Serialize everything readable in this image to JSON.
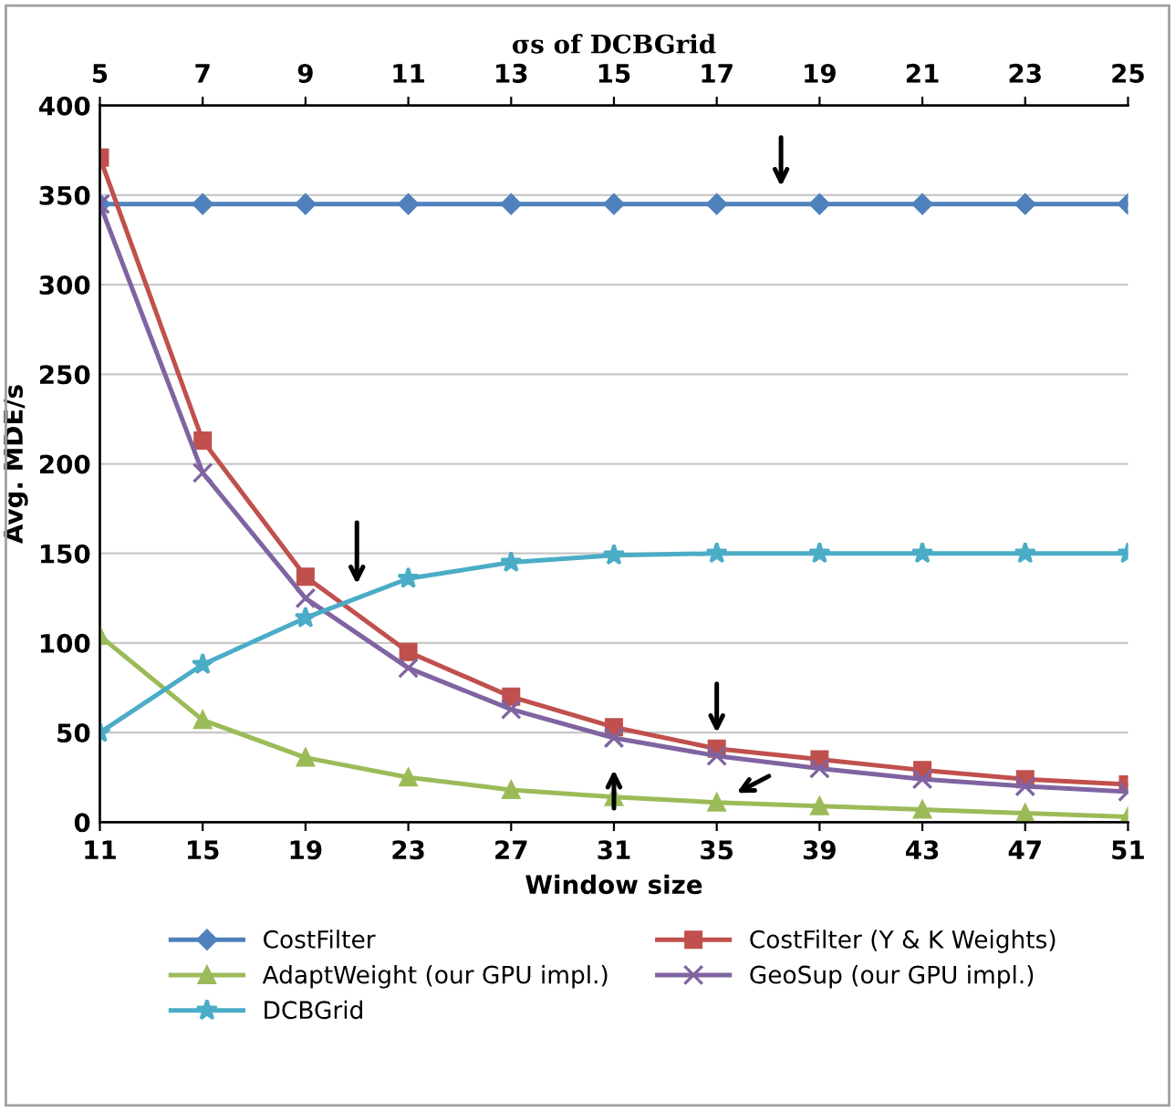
{
  "chart_data": {
    "type": "line",
    "x2label": "σs of DCBGrid",
    "xlabel": "Window size",
    "ylabel": "Avg. MDE/s",
    "x": [
      11,
      15,
      19,
      23,
      27,
      31,
      35,
      39,
      43,
      47,
      51
    ],
    "xlim": [
      11,
      51
    ],
    "xticks": [
      11,
      15,
      19,
      23,
      27,
      31,
      35,
      39,
      43,
      47,
      51
    ],
    "x2lim": [
      5,
      25
    ],
    "x2ticks": [
      5,
      7,
      9,
      11,
      13,
      15,
      17,
      19,
      21,
      23,
      25
    ],
    "ylim": [
      0,
      400
    ],
    "yticks": [
      0,
      50,
      100,
      150,
      200,
      250,
      300,
      350,
      400
    ],
    "grid": "y",
    "legend": "bottom",
    "series": [
      {
        "name": "CostFilter",
        "color": "#4f81bd",
        "marker": "diamond",
        "values": [
          345,
          345,
          345,
          345,
          345,
          345,
          345,
          345,
          345,
          345,
          345
        ]
      },
      {
        "name": "CostFilter (Y & K Weights)",
        "color": "#c0504d",
        "marker": "square",
        "values": [
          371,
          213,
          137,
          95,
          70,
          53,
          41,
          35,
          29,
          24,
          21
        ]
      },
      {
        "name": "AdaptWeight (our GPU impl.)",
        "color": "#9bbb59",
        "marker": "triangle",
        "values": [
          104,
          57,
          36,
          25,
          18,
          14,
          11,
          9,
          7,
          5,
          3
        ]
      },
      {
        "name": "GeoSup (our GPU impl.)",
        "color": "#8064a2",
        "marker": "cross",
        "values": [
          345,
          195,
          125,
          86,
          63,
          47,
          37,
          30,
          24,
          20,
          17
        ]
      },
      {
        "name": "DCBGrid",
        "color": "#4bacc6",
        "marker": "star",
        "values": [
          50,
          88,
          114,
          136,
          145,
          149,
          150,
          150,
          150,
          150,
          150
        ]
      }
    ]
  }
}
